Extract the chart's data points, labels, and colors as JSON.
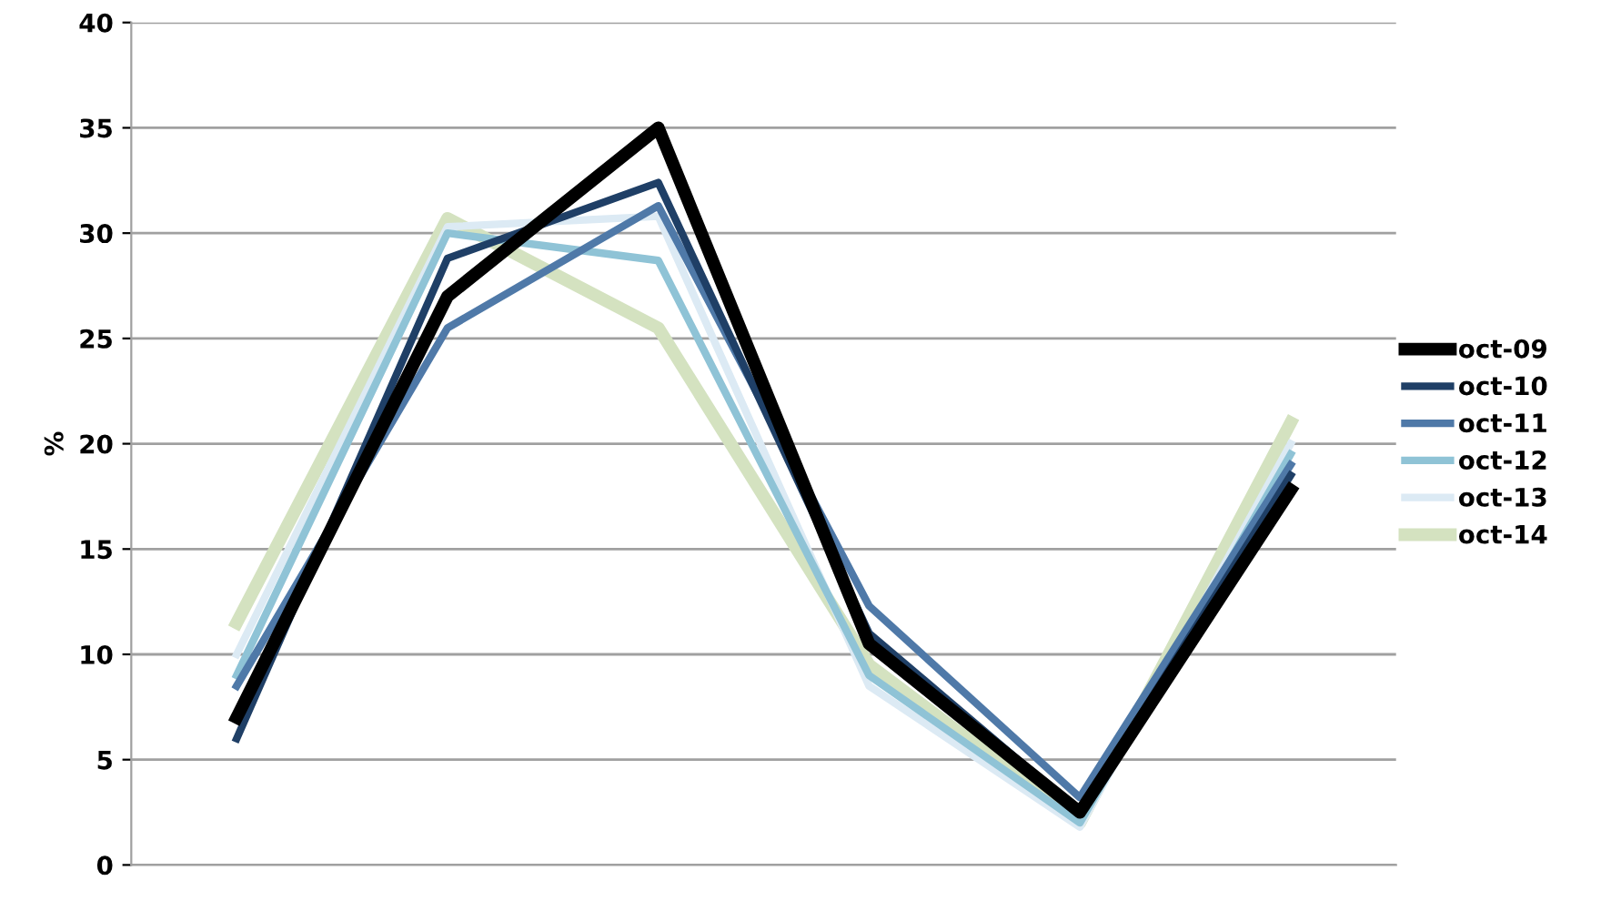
{
  "chart_data": {
    "type": "line",
    "ylabel": "%",
    "categories": [
      null,
      null,
      null,
      null,
      null,
      null
    ],
    "series": [
      {
        "name": "oct-09",
        "color": "#000000",
        "values": [
          7,
          27,
          35,
          10.5,
          2.5,
          17.8
        ]
      },
      {
        "name": "oct-10",
        "color": "#1f3f66",
        "values": [
          6,
          28.8,
          32.4,
          11,
          2.5,
          18.5
        ]
      },
      {
        "name": "oct-11",
        "color": "#4f79a8",
        "values": [
          8.5,
          25.5,
          31.3,
          12.3,
          3.2,
          19
        ]
      },
      {
        "name": "oct-12",
        "color": "#8fc3d6",
        "values": [
          9,
          30,
          28.7,
          9,
          2,
          19.5
        ]
      },
      {
        "name": "oct-13",
        "color": "#dceaf4",
        "values": [
          10,
          30.3,
          30.8,
          8.5,
          1.8,
          20
        ]
      },
      {
        "name": "oct-14",
        "color": "#d4e2c0",
        "values": [
          11.5,
          30.7,
          25.5,
          9.5,
          2,
          21
        ]
      }
    ],
    "ylim": [
      0,
      40
    ],
    "yticks": [
      0,
      5,
      10,
      15,
      20,
      25,
      30,
      35,
      40
    ],
    "grid": "y",
    "legend": "right",
    "tick_labels": "y",
    "marker": "none",
    "line_style": "solid"
  }
}
